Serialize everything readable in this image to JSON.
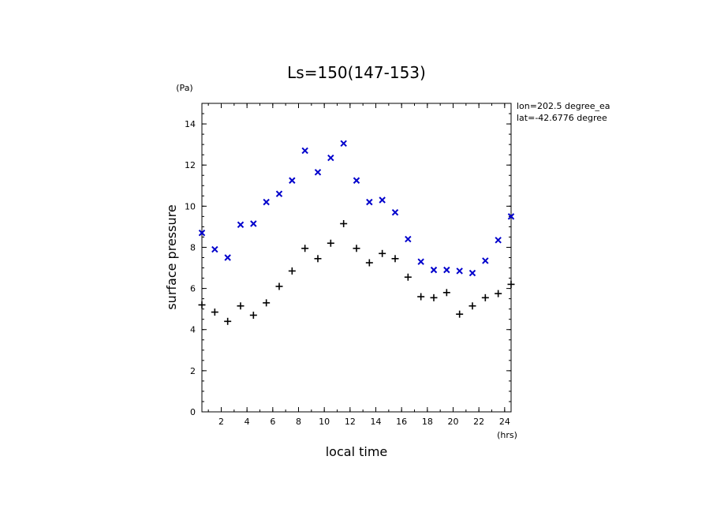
{
  "chart_data": {
    "type": "scatter",
    "title": "Ls=150(147-153)",
    "xlabel": "local time",
    "ylabel": "surface pressure",
    "x_unit": "(hrs)",
    "y_unit": "(Pa)",
    "annotations": [
      "lon=202.5 degree_ea",
      "lat=-42.6776 degree"
    ],
    "xlim": [
      0.5,
      24.5
    ],
    "ylim": [
      0,
      15
    ],
    "xticks": [
      2,
      4,
      6,
      8,
      10,
      12,
      14,
      16,
      18,
      20,
      22,
      24
    ],
    "yticks": [
      0,
      2,
      4,
      6,
      8,
      10,
      12,
      14
    ],
    "grid": false,
    "series": [
      {
        "marker": "x",
        "color": "#0000cc",
        "x": [
          0.5,
          1.5,
          2.5,
          3.5,
          4.5,
          5.5,
          6.5,
          7.5,
          8.5,
          9.5,
          10.5,
          11.5,
          12.5,
          13.5,
          14.5,
          15.5,
          16.5,
          17.5,
          18.5,
          19.5,
          20.5,
          21.5,
          22.5,
          23.5,
          24.5
        ],
        "y": [
          8.7,
          7.9,
          7.5,
          9.1,
          9.15,
          10.2,
          10.6,
          11.25,
          12.7,
          11.65,
          12.35,
          13.05,
          11.25,
          10.2,
          10.3,
          9.7,
          8.4,
          7.3,
          6.9,
          6.9,
          6.85,
          6.75,
          7.35,
          8.35,
          9.5
        ]
      },
      {
        "marker": "+",
        "color": "#000000",
        "x": [
          0.5,
          1.5,
          2.5,
          3.5,
          4.5,
          5.5,
          6.5,
          7.5,
          8.5,
          9.5,
          10.5,
          11.5,
          12.5,
          13.5,
          14.5,
          15.5,
          16.5,
          17.5,
          18.5,
          19.5,
          20.5,
          21.5,
          22.5,
          23.5,
          24.5
        ],
        "y": [
          5.2,
          4.85,
          4.4,
          5.15,
          4.7,
          5.3,
          6.1,
          6.85,
          7.95,
          7.45,
          8.2,
          9.15,
          7.95,
          7.25,
          7.7,
          7.45,
          6.55,
          5.6,
          5.55,
          5.8,
          4.75,
          5.15,
          5.55,
          5.75,
          6.2
        ]
      }
    ]
  }
}
